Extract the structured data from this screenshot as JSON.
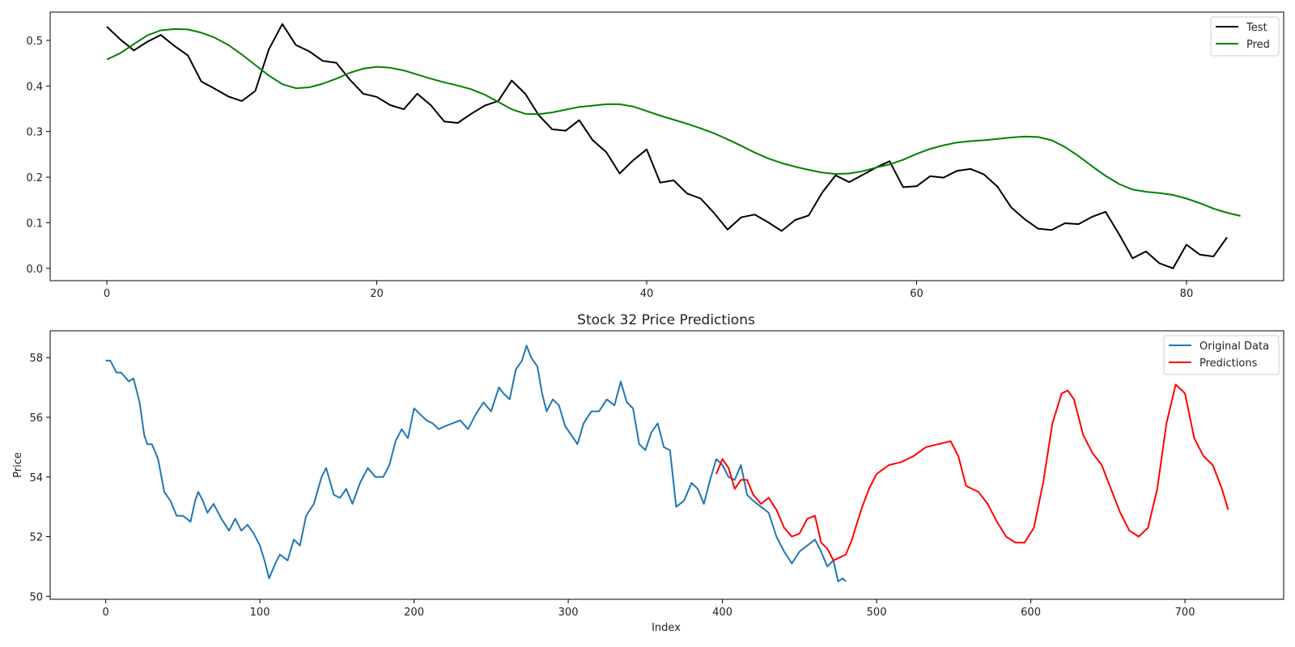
{
  "chart_data": [
    {
      "type": "line",
      "title": "",
      "xlabel": "",
      "ylabel": "",
      "xlim": [
        -4.2,
        87.2
      ],
      "ylim": [
        -0.027,
        0.562
      ],
      "xticks": [
        0,
        20,
        40,
        60,
        80
      ],
      "yticks": [
        0.0,
        0.1,
        0.2,
        0.3,
        0.4,
        0.5
      ],
      "ytick_labels": [
        "0.0",
        "0.1",
        "0.2",
        "0.3",
        "0.4",
        "0.5"
      ],
      "legend": "top-right",
      "series": [
        {
          "name": "Test",
          "color": "#000000",
          "x_start": 0,
          "values": [
            0.53,
            0.502,
            0.478,
            0.497,
            0.512,
            0.488,
            0.467,
            0.41,
            0.394,
            0.377,
            0.367,
            0.389,
            0.48,
            0.536,
            0.49,
            0.476,
            0.455,
            0.451,
            0.414,
            0.383,
            0.376,
            0.358,
            0.349,
            0.383,
            0.358,
            0.322,
            0.319,
            0.339,
            0.357,
            0.367,
            0.412,
            0.383,
            0.336,
            0.305,
            0.302,
            0.325,
            0.281,
            0.255,
            0.208,
            0.237,
            0.261,
            0.188,
            0.193,
            0.164,
            0.153,
            0.121,
            0.085,
            0.112,
            0.118,
            0.101,
            0.082,
            0.106,
            0.116,
            0.166,
            0.204,
            0.189,
            0.205,
            0.221,
            0.235,
            0.178,
            0.18,
            0.202,
            0.199,
            0.214,
            0.218,
            0.206,
            0.179,
            0.134,
            0.108,
            0.087,
            0.084,
            0.099,
            0.097,
            0.113,
            0.124,
            0.075,
            0.022,
            0.037,
            0.011,
            0.0,
            0.052,
            0.03,
            0.026,
            0.068
          ]
        },
        {
          "name": "Pred",
          "color": "#008000",
          "x_start": 0,
          "values": [
            0.458,
            0.472,
            0.492,
            0.511,
            0.522,
            0.525,
            0.524,
            0.517,
            0.506,
            0.49,
            0.469,
            0.446,
            0.423,
            0.404,
            0.395,
            0.397,
            0.405,
            0.416,
            0.429,
            0.438,
            0.442,
            0.44,
            0.434,
            0.425,
            0.416,
            0.408,
            0.401,
            0.393,
            0.381,
            0.365,
            0.349,
            0.339,
            0.338,
            0.342,
            0.348,
            0.354,
            0.357,
            0.36,
            0.36,
            0.355,
            0.345,
            0.335,
            0.326,
            0.317,
            0.307,
            0.296,
            0.283,
            0.269,
            0.254,
            0.241,
            0.231,
            0.223,
            0.216,
            0.21,
            0.207,
            0.208,
            0.213,
            0.221,
            0.228,
            0.238,
            0.251,
            0.262,
            0.27,
            0.276,
            0.279,
            0.281,
            0.284,
            0.287,
            0.289,
            0.288,
            0.281,
            0.266,
            0.246,
            0.224,
            0.203,
            0.185,
            0.173,
            0.168,
            0.165,
            0.161,
            0.153,
            0.143,
            0.131,
            0.122,
            0.115
          ]
        }
      ]
    },
    {
      "type": "line",
      "title": "Stock 32 Price Predictions",
      "xlabel": "Index",
      "ylabel": "Price",
      "xlim": [
        -36,
        764
      ],
      "ylim": [
        49.9,
        58.9
      ],
      "xticks": [
        0,
        100,
        200,
        300,
        400,
        500,
        600,
        700
      ],
      "yticks": [
        50,
        52,
        54,
        56,
        58
      ],
      "legend": "top-right",
      "series": [
        {
          "name": "Original Data",
          "color": "#1f77b4",
          "x": [
            0,
            3,
            7,
            10,
            15,
            18,
            22,
            25,
            27,
            30,
            34,
            38,
            42,
            46,
            50,
            55,
            58,
            60,
            63,
            66,
            70,
            75,
            80,
            84,
            88,
            92,
            96,
            100,
            103,
            106,
            110,
            113,
            118,
            122,
            126,
            130,
            135,
            140,
            143,
            148,
            152,
            156,
            160,
            165,
            170,
            175,
            180,
            184,
            188,
            192,
            196,
            200,
            204,
            208,
            212,
            216,
            220,
            225,
            230,
            235,
            240,
            245,
            250,
            255,
            258,
            262,
            266,
            270,
            273,
            276,
            280,
            283,
            286,
            290,
            294,
            298,
            302,
            306,
            310,
            315,
            320,
            325,
            330,
            334,
            338,
            342,
            346,
            350,
            354,
            358,
            362,
            366,
            370,
            375,
            380,
            384,
            388,
            392,
            396,
            400,
            404,
            408,
            412,
            416,
            420,
            425,
            430,
            435,
            440,
            445,
            450,
            455,
            460,
            464,
            468,
            472,
            475,
            478,
            480
          ],
          "y": [
            57.9,
            57.9,
            57.5,
            57.5,
            57.2,
            57.3,
            56.5,
            55.4,
            55.1,
            55.1,
            54.6,
            53.5,
            53.2,
            52.7,
            52.7,
            52.5,
            53.2,
            53.5,
            53.2,
            52.8,
            53.1,
            52.6,
            52.2,
            52.6,
            52.2,
            52.4,
            52.1,
            51.7,
            51.2,
            50.6,
            51.1,
            51.4,
            51.2,
            51.9,
            51.7,
            52.7,
            53.1,
            54.0,
            54.3,
            53.4,
            53.3,
            53.6,
            53.1,
            53.8,
            54.3,
            54.0,
            54.0,
            54.4,
            55.2,
            55.6,
            55.3,
            56.3,
            56.1,
            55.9,
            55.8,
            55.6,
            55.7,
            55.8,
            55.9,
            55.6,
            56.1,
            56.5,
            56.2,
            57.0,
            56.8,
            56.6,
            57.6,
            57.9,
            58.4,
            58.0,
            57.7,
            56.8,
            56.2,
            56.6,
            56.4,
            55.7,
            55.4,
            55.1,
            55.8,
            56.2,
            56.2,
            56.6,
            56.4,
            57.2,
            56.5,
            56.3,
            55.1,
            54.9,
            55.5,
            55.8,
            55.0,
            54.9,
            53.0,
            53.2,
            53.8,
            53.6,
            53.1,
            53.9,
            54.6,
            54.4,
            54.0,
            53.9,
            54.4,
            53.4,
            53.2,
            53.0,
            52.8,
            52.0,
            51.5,
            51.1,
            51.5,
            51.7,
            51.9,
            51.5,
            51.0,
            51.2,
            50.5,
            50.6,
            50.5
          ]
        },
        {
          "name": "Predictions",
          "color": "#ff0000",
          "x": [
            396,
            400,
            404,
            408,
            412,
            416,
            420,
            425,
            430,
            435,
            440,
            445,
            450,
            455,
            460,
            464,
            468,
            472,
            476,
            480,
            484,
            490,
            495,
            500,
            508,
            516,
            524,
            532,
            540,
            548,
            553,
            558,
            562,
            566,
            572,
            578,
            584,
            590,
            596,
            602,
            608,
            614,
            620,
            624,
            628,
            634,
            640,
            646,
            652,
            658,
            664,
            670,
            676,
            682,
            688,
            694,
            700,
            706,
            712,
            718,
            724,
            728
          ],
          "y": [
            54.1,
            54.6,
            54.3,
            53.6,
            53.9,
            53.9,
            53.4,
            53.1,
            53.3,
            52.9,
            52.3,
            52.0,
            52.1,
            52.6,
            52.7,
            51.8,
            51.6,
            51.2,
            51.3,
            51.4,
            51.9,
            52.9,
            53.6,
            54.1,
            54.4,
            54.5,
            54.7,
            55.0,
            55.1,
            55.2,
            54.7,
            53.7,
            53.6,
            53.5,
            53.1,
            52.5,
            52.0,
            51.8,
            51.8,
            52.3,
            53.8,
            55.8,
            56.8,
            56.9,
            56.6,
            55.4,
            54.8,
            54.4,
            53.6,
            52.8,
            52.2,
            52.0,
            52.3,
            53.6,
            55.8,
            57.1,
            56.8,
            55.3,
            54.7,
            54.4,
            53.6,
            52.9
          ]
        }
      ]
    }
  ]
}
